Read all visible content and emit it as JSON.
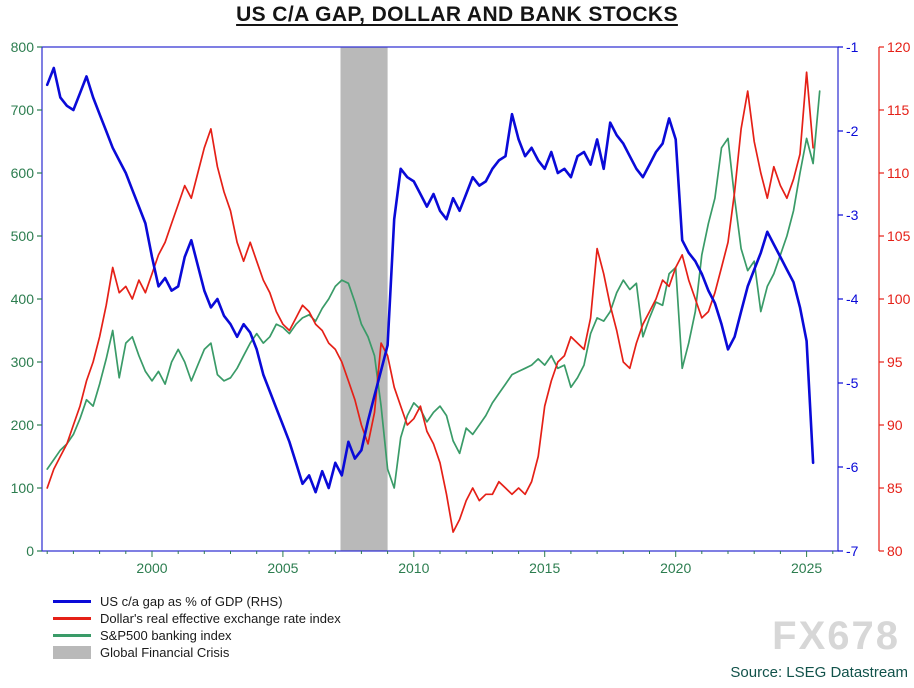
{
  "title": "US C/A GAP, DOLLAR AND BANK STOCKS",
  "source": "Source: LSEG Datastream",
  "watermark": "FX678",
  "chart_data": {
    "type": "line",
    "title": "US C/A GAP, DOLLAR AND BANK STOCKS",
    "x_range": [
      1995.8,
      2026.2
    ],
    "x_ticks": [
      2000,
      2005,
      2010,
      2015,
      2020,
      2025
    ],
    "x_tick_color": "#2c7d4f",
    "frame_color": "#2a2ad0",
    "axes": {
      "left": {
        "side": "left",
        "min": 0,
        "max": 800,
        "ticks": [
          0,
          100,
          200,
          300,
          400,
          500,
          600,
          700,
          800
        ],
        "color": "#2c7d4f"
      },
      "blue": {
        "side": "right-inner",
        "min": -7,
        "max": -1,
        "ticks": [
          -1,
          -2,
          -3,
          -4,
          -5,
          -6,
          -7
        ],
        "color": "#0a0ad8"
      },
      "red": {
        "side": "right-outer",
        "min": 80,
        "max": 120,
        "ticks": [
          80,
          85,
          90,
          95,
          100,
          105,
          110,
          115,
          120
        ],
        "color": "#e52017"
      }
    },
    "gfc_band": {
      "label": "Global Financial Crisis",
      "x0": 2007.2,
      "x1": 2009.0,
      "color": "#b9b9b9"
    },
    "series": [
      {
        "name": "US c/a gap as % of GDP (RHS)",
        "axis": "blue",
        "color": "#0a0ad8",
        "width": 2.6,
        "x_start": 1996.0,
        "x_step": 0.25,
        "values": [
          -1.45,
          -1.25,
          -1.6,
          -1.7,
          -1.75,
          -1.55,
          -1.35,
          -1.6,
          -1.8,
          -2.0,
          -2.2,
          -2.35,
          -2.5,
          -2.7,
          -2.9,
          -3.1,
          -3.5,
          -3.85,
          -3.75,
          -3.9,
          -3.85,
          -3.5,
          -3.3,
          -3.6,
          -3.9,
          -4.1,
          -4.0,
          -4.2,
          -4.3,
          -4.45,
          -4.3,
          -4.4,
          -4.6,
          -4.9,
          -5.1,
          -5.3,
          -5.5,
          -5.7,
          -5.95,
          -6.2,
          -6.1,
          -6.3,
          -6.05,
          -6.25,
          -5.95,
          -6.1,
          -5.7,
          -5.9,
          -5.8,
          -5.45,
          -5.15,
          -4.85,
          -4.55,
          -3.05,
          -2.45,
          -2.55,
          -2.6,
          -2.75,
          -2.9,
          -2.75,
          -2.95,
          -3.05,
          -2.8,
          -2.95,
          -2.75,
          -2.55,
          -2.65,
          -2.6,
          -2.45,
          -2.35,
          -2.3,
          -1.8,
          -2.1,
          -2.3,
          -2.2,
          -2.35,
          -2.45,
          -2.25,
          -2.5,
          -2.45,
          -2.55,
          -2.3,
          -2.25,
          -2.4,
          -2.1,
          -2.45,
          -1.9,
          -2.05,
          -2.15,
          -2.3,
          -2.45,
          -2.55,
          -2.4,
          -2.25,
          -2.15,
          -1.85,
          -2.1,
          -3.3,
          -3.45,
          -3.55,
          -3.7,
          -3.9,
          -4.05,
          -4.3,
          -4.6,
          -4.45,
          -4.15,
          -3.85,
          -3.65,
          -3.45,
          -3.2,
          -3.35,
          -3.5,
          -3.65,
          -3.8,
          -4.1,
          -4.5,
          -5.95
        ]
      },
      {
        "name": "Dollar's real effective exchange rate index",
        "axis": "red",
        "color": "#e52017",
        "width": 1.7,
        "x_start": 1996.0,
        "x_step": 0.25,
        "values": [
          85,
          86.5,
          87.5,
          88.5,
          90,
          91.5,
          93.5,
          95,
          97,
          99.5,
          102.5,
          100.5,
          101,
          100,
          101.5,
          100.5,
          102,
          103.5,
          104.5,
          106,
          107.5,
          109,
          108,
          110,
          112,
          113.5,
          110.5,
          108.5,
          107,
          104.5,
          103,
          104.5,
          103,
          101.5,
          100.5,
          99,
          98,
          97.5,
          98.5,
          99.5,
          99,
          98,
          97.5,
          96.5,
          96,
          95,
          93.5,
          92,
          90,
          88.5,
          91,
          96.5,
          95.5,
          93,
          91.5,
          90,
          90.5,
          91.5,
          89.5,
          88.5,
          87,
          84.5,
          81.5,
          82.5,
          84,
          85,
          84,
          84.5,
          84.5,
          85.5,
          85,
          84.5,
          85,
          84.5,
          85.5,
          87.5,
          91.5,
          93.5,
          95,
          95.5,
          97,
          96.5,
          96,
          98.5,
          104,
          102,
          99.5,
          97.5,
          95,
          94.5,
          96.5,
          98,
          99,
          100,
          101.5,
          101,
          102.5,
          103.5,
          101.5,
          100,
          98.5,
          99,
          100.5,
          102.5,
          104.5,
          108.5,
          113.5,
          116.5,
          112.5,
          110,
          108,
          110.5,
          109,
          108,
          109.5,
          111.5,
          118,
          112
        ]
      },
      {
        "name": "S&P500 banking index",
        "axis": "left",
        "color": "#3a9b68",
        "width": 1.7,
        "x_start": 1996.0,
        "x_step": 0.25,
        "values": [
          130,
          145,
          160,
          170,
          185,
          210,
          240,
          230,
          265,
          305,
          350,
          275,
          330,
          340,
          310,
          285,
          270,
          285,
          265,
          300,
          320,
          300,
          270,
          295,
          320,
          330,
          280,
          270,
          275,
          290,
          310,
          330,
          345,
          330,
          340,
          360,
          355,
          345,
          360,
          370,
          375,
          365,
          385,
          400,
          420,
          430,
          425,
          395,
          360,
          340,
          310,
          230,
          130,
          100,
          180,
          215,
          235,
          225,
          205,
          220,
          230,
          215,
          175,
          155,
          195,
          185,
          200,
          215,
          235,
          250,
          265,
          280,
          285,
          290,
          295,
          305,
          295,
          310,
          290,
          295,
          260,
          275,
          295,
          345,
          370,
          365,
          380,
          410,
          430,
          415,
          425,
          340,
          370,
          395,
          390,
          440,
          450,
          290,
          330,
          380,
          470,
          520,
          560,
          640,
          655,
          560,
          480,
          445,
          460,
          380,
          420,
          440,
          470,
          500,
          540,
          600,
          655,
          615,
          730
        ]
      }
    ],
    "legend": [
      {
        "label": "US c/a gap as % of GDP (RHS)",
        "swatch": "line",
        "color": "#0a0ad8"
      },
      {
        "label": "Dollar's real effective exchange rate index",
        "swatch": "line",
        "color": "#e52017"
      },
      {
        "label": "S&P500 banking index",
        "swatch": "line",
        "color": "#3a9b68"
      },
      {
        "label": "Global Financial Crisis",
        "swatch": "rect",
        "color": "#b9b9b9"
      }
    ]
  }
}
